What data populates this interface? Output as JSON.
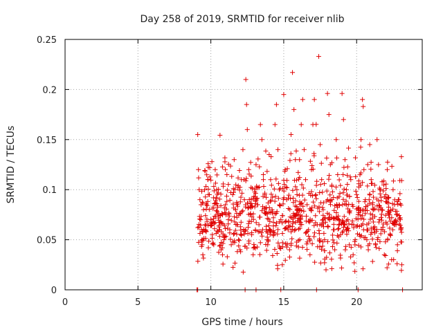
{
  "chart_data": {
    "type": "scatter",
    "title": "Day 258 of 2019, SRMTID for receiver nlib",
    "xlabel": "GPS time / hours",
    "ylabel": "SRMTID / TECUs",
    "xlim": [
      0,
      24.5
    ],
    "ylim": [
      0,
      0.25
    ],
    "xticks": [
      0,
      5,
      10,
      15,
      20
    ],
    "yticks": [
      0,
      0.05,
      0.1,
      0.15,
      0.2,
      0.25
    ],
    "xtick_labels": [
      "0",
      "5",
      "10",
      "15",
      "20"
    ],
    "ytick_labels": [
      "0",
      "0.05",
      "0.1",
      "0.15",
      "0.2",
      "0.25"
    ],
    "grid": true,
    "marker": "+",
    "color": "#e00000",
    "series": [
      {
        "name": "SRMTID",
        "description_of_distribution": "dense cloud of points from ~9.1 h to ~23.1 h, mostly 0.03–0.12 TECU",
        "points": [
          [
            9.1,
            0.155
          ],
          [
            9.15,
            0.12
          ],
          [
            9.2,
            0.1
          ],
          [
            9.25,
            0.09
          ],
          [
            9.3,
            0.07
          ],
          [
            9.35,
            0.06
          ],
          [
            9.4,
            0.045
          ],
          [
            9.45,
            0.035
          ],
          [
            9.5,
            0.08
          ],
          [
            9.6,
            0.065
          ],
          [
            9.7,
            0.085
          ],
          [
            9.8,
            0.11
          ],
          [
            9.9,
            0.095
          ],
          [
            10.0,
            0.07
          ],
          [
            10.1,
            0.055
          ],
          [
            10.2,
            0.045
          ],
          [
            10.3,
            0.12
          ],
          [
            10.4,
            0.1
          ],
          [
            10.5,
            0.075
          ],
          [
            10.6,
            0.06
          ],
          [
            10.7,
            0.04
          ],
          [
            10.8,
            0.035
          ],
          [
            10.9,
            0.05
          ],
          [
            11.0,
            0.085
          ],
          [
            11.1,
            0.115
          ],
          [
            11.2,
            0.07
          ],
          [
            11.3,
            0.06
          ],
          [
            11.4,
            0.045
          ],
          [
            11.5,
            0.095
          ],
          [
            11.6,
            0.13
          ],
          [
            11.7,
            0.08
          ],
          [
            11.8,
            0.065
          ],
          [
            11.9,
            0.05
          ],
          [
            12.0,
            0.04
          ],
          [
            12.1,
            0.11
          ],
          [
            12.2,
            0.14
          ],
          [
            12.3,
            0.09
          ],
          [
            12.4,
            0.21
          ],
          [
            12.45,
            0.185
          ],
          [
            12.5,
            0.16
          ],
          [
            12.6,
            0.12
          ],
          [
            12.7,
            0.075
          ],
          [
            12.8,
            0.055
          ],
          [
            12.9,
            0.035
          ],
          [
            13.0,
            0.1
          ],
          [
            13.1,
            0.125
          ],
          [
            13.2,
            0.085
          ],
          [
            13.3,
            0.065
          ],
          [
            13.4,
            0.165
          ],
          [
            13.5,
            0.15
          ],
          [
            13.6,
            0.115
          ],
          [
            13.7,
            0.095
          ],
          [
            13.8,
            0.06
          ],
          [
            13.9,
            0.045
          ],
          [
            14.0,
            0.135
          ],
          [
            14.1,
            0.11
          ],
          [
            14.2,
            0.08
          ],
          [
            14.3,
            0.055
          ],
          [
            14.4,
            0.165
          ],
          [
            14.5,
            0.185
          ],
          [
            14.6,
            0.14
          ],
          [
            14.7,
            0.1
          ],
          [
            14.8,
            0.07
          ],
          [
            14.9,
            0.025
          ],
          [
            15.0,
            0.195
          ],
          [
            15.1,
            0.12
          ],
          [
            15.2,
            0.09
          ],
          [
            15.3,
            0.06
          ],
          [
            15.4,
            0.04
          ],
          [
            15.5,
            0.155
          ],
          [
            15.6,
            0.217
          ],
          [
            15.7,
            0.18
          ],
          [
            15.8,
            0.13
          ],
          [
            15.9,
            0.1
          ],
          [
            16.0,
            0.075
          ],
          [
            16.1,
            0.05
          ],
          [
            16.2,
            0.165
          ],
          [
            16.3,
            0.19
          ],
          [
            16.4,
            0.14
          ],
          [
            16.5,
            0.11
          ],
          [
            16.6,
            0.085
          ],
          [
            16.7,
            0.06
          ],
          [
            16.8,
            0.035
          ],
          [
            16.9,
            0.12
          ],
          [
            17.0,
            0.165
          ],
          [
            17.1,
            0.19
          ],
          [
            17.2,
            0.095
          ],
          [
            17.3,
            0.065
          ],
          [
            17.4,
            0.233
          ],
          [
            17.5,
            0.145
          ],
          [
            17.6,
            0.11
          ],
          [
            17.7,
            0.08
          ],
          [
            17.8,
            0.05
          ],
          [
            17.9,
            0.02
          ],
          [
            18.0,
            0.196
          ],
          [
            18.1,
            0.175
          ],
          [
            18.2,
            0.125
          ],
          [
            18.3,
            0.09
          ],
          [
            18.4,
            0.06
          ],
          [
            18.5,
            0.04
          ],
          [
            18.6,
            0.15
          ],
          [
            18.7,
            0.115
          ],
          [
            18.8,
            0.085
          ],
          [
            18.9,
            0.055
          ],
          [
            19.0,
            0.196
          ],
          [
            19.1,
            0.17
          ],
          [
            19.2,
            0.13
          ],
          [
            19.3,
            0.1
          ],
          [
            19.4,
            0.07
          ],
          [
            19.5,
            0.045
          ],
          [
            19.6,
            0.11
          ],
          [
            19.7,
            0.085
          ],
          [
            19.8,
            0.065
          ],
          [
            19.9,
            0.05
          ],
          [
            20.0,
            0.095
          ],
          [
            20.1,
            0.075
          ],
          [
            20.2,
            0.055
          ],
          [
            20.3,
            0.15
          ],
          [
            20.4,
            0.19
          ],
          [
            20.45,
            0.183
          ],
          [
            20.5,
            0.12
          ],
          [
            20.6,
            0.09
          ],
          [
            20.7,
            0.065
          ],
          [
            20.8,
            0.04
          ],
          [
            20.9,
            0.145
          ],
          [
            21.0,
            0.11
          ],
          [
            21.1,
            0.085
          ],
          [
            21.2,
            0.06
          ],
          [
            21.3,
            0.045
          ],
          [
            21.4,
            0.15
          ],
          [
            21.5,
            0.125
          ],
          [
            21.6,
            0.1
          ],
          [
            21.7,
            0.08
          ],
          [
            21.8,
            0.06
          ],
          [
            21.9,
            0.035
          ],
          [
            22.0,
            0.095
          ],
          [
            22.1,
            0.12
          ],
          [
            22.2,
            0.075
          ],
          [
            22.3,
            0.055
          ],
          [
            22.4,
            0.03
          ],
          [
            22.5,
            0.1
          ],
          [
            22.6,
            0.085
          ],
          [
            22.7,
            0.065
          ],
          [
            22.8,
            0.045
          ],
          [
            22.9,
            0.09
          ],
          [
            23.0,
            0.07
          ],
          [
            23.1,
            0.025
          ]
        ]
      }
    ]
  },
  "colors": {
    "marker": "#e00000",
    "grid": "#a0a0a0",
    "axis": "#000000",
    "background": "#ffffff"
  }
}
